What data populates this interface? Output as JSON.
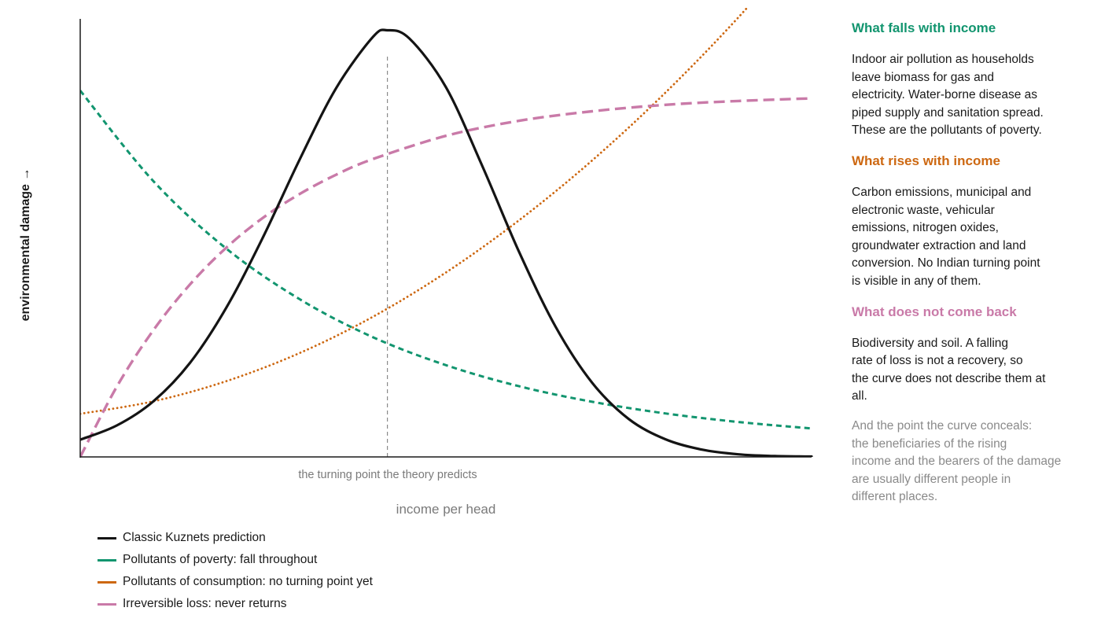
{
  "chart_data": {
    "type": "line",
    "xlabel": "income per head",
    "ylabel": "environmental damage →",
    "x_range": [
      0,
      1
    ],
    "y_range": [
      0,
      1
    ],
    "annotation": "the turning point the theory predicts",
    "turning_point_x": 0.42,
    "grid": false,
    "legend_placement": "bottom-left",
    "series": [
      {
        "name": "Classic Kuznets prediction",
        "color": "#141414",
        "style": "solid",
        "x": [
          0.0,
          0.05,
          0.1,
          0.15,
          0.2,
          0.25,
          0.3,
          0.35,
          0.4,
          0.42,
          0.45,
          0.5,
          0.55,
          0.6,
          0.65,
          0.7,
          0.75,
          0.8,
          0.85,
          0.9,
          0.95,
          1.0
        ],
        "y": [
          0.04,
          0.073,
          0.129,
          0.218,
          0.347,
          0.51,
          0.69,
          0.856,
          0.974,
          0.99,
          0.971,
          0.858,
          0.674,
          0.476,
          0.302,
          0.172,
          0.088,
          0.041,
          0.017,
          0.006,
          0.002,
          0.001
        ]
      },
      {
        "name": "Pollutants of poverty: fall throughout",
        "color": "#12956f",
        "style": "dashed",
        "x": [
          0.0,
          0.1,
          0.2,
          0.3,
          0.4,
          0.5,
          0.6,
          0.7,
          0.8,
          0.9,
          1.0
        ],
        "y": [
          0.85,
          0.64,
          0.483,
          0.366,
          0.278,
          0.213,
          0.164,
          0.128,
          0.101,
          0.081,
          0.066
        ]
      },
      {
        "name": "Pollutants of consumption: no turning point yet",
        "color": "#cd6811",
        "style": "dotted",
        "x": [
          0.0,
          0.1,
          0.2,
          0.3,
          0.4,
          0.5,
          0.6,
          0.7,
          0.8,
          0.9,
          1.0
        ],
        "y": [
          0.1,
          0.129,
          0.176,
          0.241,
          0.325,
          0.428,
          0.549,
          0.688,
          0.845,
          1.02,
          1.214
        ]
      },
      {
        "name": "Irreversible loss: never returns",
        "color": "#c97aa8",
        "style": "longdash",
        "x": [
          0.0,
          0.05,
          0.1,
          0.15,
          0.2,
          0.25,
          0.3,
          0.35,
          0.4,
          0.5,
          0.6,
          0.7,
          0.8,
          0.9,
          1.0
        ],
        "y": [
          0.0,
          0.163,
          0.294,
          0.4,
          0.486,
          0.555,
          0.61,
          0.655,
          0.691,
          0.745,
          0.78,
          0.802,
          0.817,
          0.826,
          0.832
        ]
      }
    ]
  },
  "side": {
    "falls": {
      "heading": "What falls with income",
      "lines": [
        "Indoor air pollution as households",
        "leave biomass for gas and",
        "electricity. Water-borne disease as",
        "piped supply and sanitation spread.",
        "These are the pollutants of poverty."
      ]
    },
    "rises": {
      "heading": "What rises with income",
      "lines": [
        "Carbon emissions, municipal and",
        "electronic waste, vehicular",
        "emissions, nitrogen oxides,",
        "groundwater extraction and land",
        "conversion. No Indian turning point",
        "is visible in any of them."
      ]
    },
    "loss": {
      "heading": "What does not come back",
      "lines": [
        "Biodiversity and soil. A falling",
        "rate of loss is not a recovery, so",
        "the curve does not describe them at",
        "all."
      ]
    },
    "note": {
      "lines": [
        "And the point the curve conceals:",
        "the beneficiaries of the rising",
        "income and the bearers of the damage",
        "are usually different people in",
        "different places."
      ]
    }
  }
}
